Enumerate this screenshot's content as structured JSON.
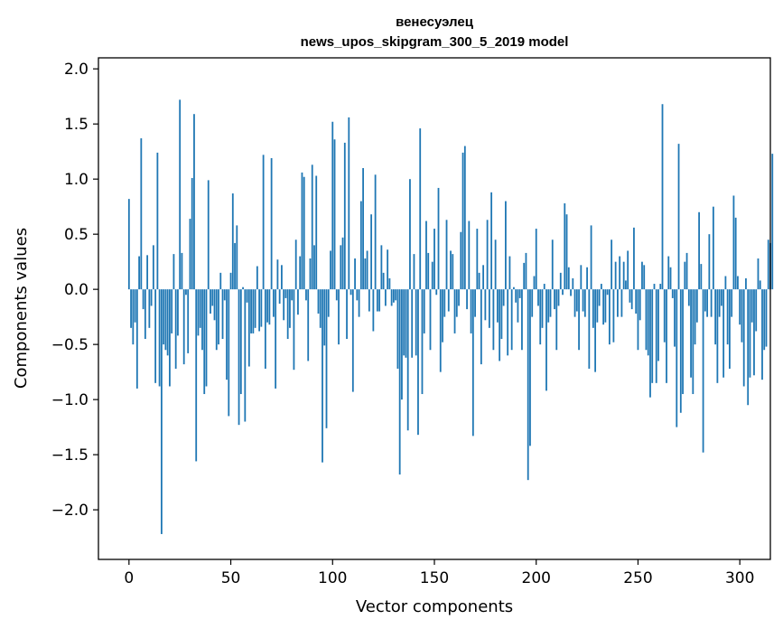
{
  "chart_data": {
    "type": "bar",
    "title": "венесуэлец",
    "subtitle": "news_upos_skipgram_300_5_2019 model",
    "xlabel": "Vector components",
    "ylabel": "Components values",
    "xlim": [
      -15,
      315
    ],
    "ylim": [
      -2.45,
      2.1
    ],
    "xticks": [
      0,
      50,
      100,
      150,
      200,
      250,
      300
    ],
    "yticks": [
      -2.0,
      -1.5,
      -1.0,
      -0.5,
      0.0,
      0.5,
      1.0,
      1.5,
      2.0
    ],
    "ytick_labels": [
      "−2.0",
      "−1.5",
      "−1.0",
      "−0.5",
      "0.0",
      "0.5",
      "1.0",
      "1.5",
      "2.0"
    ],
    "grid": false,
    "bar_color": "#1f77b4",
    "values": [
      0.82,
      -0.35,
      -0.5,
      -0.3,
      -0.9,
      0.3,
      1.37,
      -0.18,
      -0.45,
      0.31,
      -0.35,
      -0.15,
      0.4,
      -0.85,
      1.24,
      -0.88,
      -2.22,
      -0.5,
      -0.55,
      -0.6,
      -0.88,
      -0.4,
      0.32,
      -0.72,
      -0.42,
      1.72,
      0.33,
      -0.68,
      -0.05,
      -0.58,
      0.64,
      1.01,
      1.59,
      -1.56,
      -0.42,
      -0.35,
      -0.55,
      -0.95,
      -0.88,
      0.99,
      -0.22,
      -0.15,
      -0.28,
      -0.55,
      -0.5,
      0.15,
      -0.45,
      -0.1,
      -0.82,
      -1.15,
      0.15,
      0.87,
      0.42,
      0.58,
      -1.23,
      -0.95,
      0.02,
      -1.2,
      -0.12,
      -0.7,
      -0.4,
      -0.4,
      -0.35,
      0.21,
      -0.38,
      -0.34,
      1.22,
      -0.72,
      -0.3,
      -0.32,
      1.19,
      -0.25,
      -0.9,
      0.27,
      -0.13,
      0.22,
      -0.28,
      -0.08,
      -0.45,
      -0.35,
      -0.1,
      -0.73,
      0.45,
      -0.23,
      0.3,
      1.06,
      1.02,
      -0.1,
      -0.65,
      0.28,
      1.13,
      0.4,
      1.03,
      -0.22,
      -0.35,
      -1.57,
      -0.51,
      -1.26,
      -0.25,
      0.35,
      1.52,
      1.36,
      -0.1,
      -0.5,
      0.4,
      0.47,
      1.33,
      -0.45,
      1.56,
      -0.05,
      -0.93,
      0.28,
      -0.1,
      -0.25,
      0.8,
      1.1,
      0.28,
      0.35,
      -0.2,
      0.68,
      -0.38,
      1.04,
      -0.2,
      -0.2,
      0.4,
      0.15,
      -0.15,
      0.36,
      0.1,
      -0.15,
      -0.12,
      -0.1,
      -0.72,
      -1.68,
      -1.0,
      -0.6,
      -0.62,
      -1.28,
      1.0,
      -0.62,
      0.32,
      -0.6,
      -1.32,
      1.46,
      -0.95,
      -0.4,
      0.62,
      0.33,
      -0.55,
      0.25,
      0.55,
      -0.05,
      0.92,
      -0.75,
      -0.48,
      -0.25,
      0.63,
      -0.2,
      0.35,
      0.32,
      -0.4,
      -0.25,
      -0.15,
      0.52,
      1.24,
      1.3,
      -0.18,
      0.62,
      -0.4,
      -1.33,
      -0.25,
      0.55,
      0.15,
      -0.68,
      0.22,
      -0.28,
      0.63,
      -0.35,
      0.88,
      -0.55,
      0.45,
      -0.3,
      -0.65,
      -0.45,
      -0.15,
      0.8,
      -0.6,
      0.3,
      -0.55,
      0.02,
      -0.12,
      -0.3,
      -0.08,
      -0.55,
      0.24,
      0.33,
      -1.73,
      -1.42,
      -0.25,
      0.12,
      0.55,
      -0.15,
      -0.5,
      -0.35,
      0.05,
      -0.92,
      -0.3,
      -0.25,
      0.45,
      -0.18,
      -0.55,
      -0.15,
      0.15,
      -0.05,
      0.78,
      0.68,
      0.2,
      -0.06,
      0.1,
      -0.25,
      -0.2,
      -0.55,
      0.22,
      -0.2,
      -0.25,
      0.2,
      -0.72,
      0.58,
      -0.35,
      -0.75,
      -0.3,
      -0.15,
      0.05,
      -0.32,
      -0.3,
      -0.05,
      -0.5,
      0.45,
      -0.48,
      0.25,
      -0.25,
      0.3,
      -0.25,
      0.25,
      0.08,
      0.35,
      -0.12,
      -0.18,
      0.56,
      -0.22,
      -0.55,
      -0.28,
      0.25,
      0.22,
      -0.55,
      -0.6,
      -0.98,
      -0.85,
      0.05,
      -0.85,
      -0.65,
      0.05,
      1.68,
      -0.48,
      -0.85,
      0.3,
      0.2,
      -0.08,
      -0.52,
      -1.25,
      1.32,
      -1.12,
      -0.95,
      0.25,
      0.33,
      -0.15,
      -0.8,
      -0.95,
      -0.5,
      -0.3,
      0.7,
      0.23,
      -1.48,
      -0.2,
      -0.25,
      0.5,
      -0.25,
      0.75,
      -0.5,
      -0.85,
      -0.25,
      -0.15,
      -0.8,
      0.12,
      -0.5,
      -0.72,
      -0.25,
      0.85,
      0.65,
      0.12,
      -0.32,
      -0.48,
      -0.88,
      0.1,
      -1.05,
      -0.8,
      -0.3,
      -0.78,
      -0.38,
      0.28,
      0.08,
      -0.82,
      -0.55,
      -0.52,
      0.45,
      0.42,
      1.23
    ]
  }
}
